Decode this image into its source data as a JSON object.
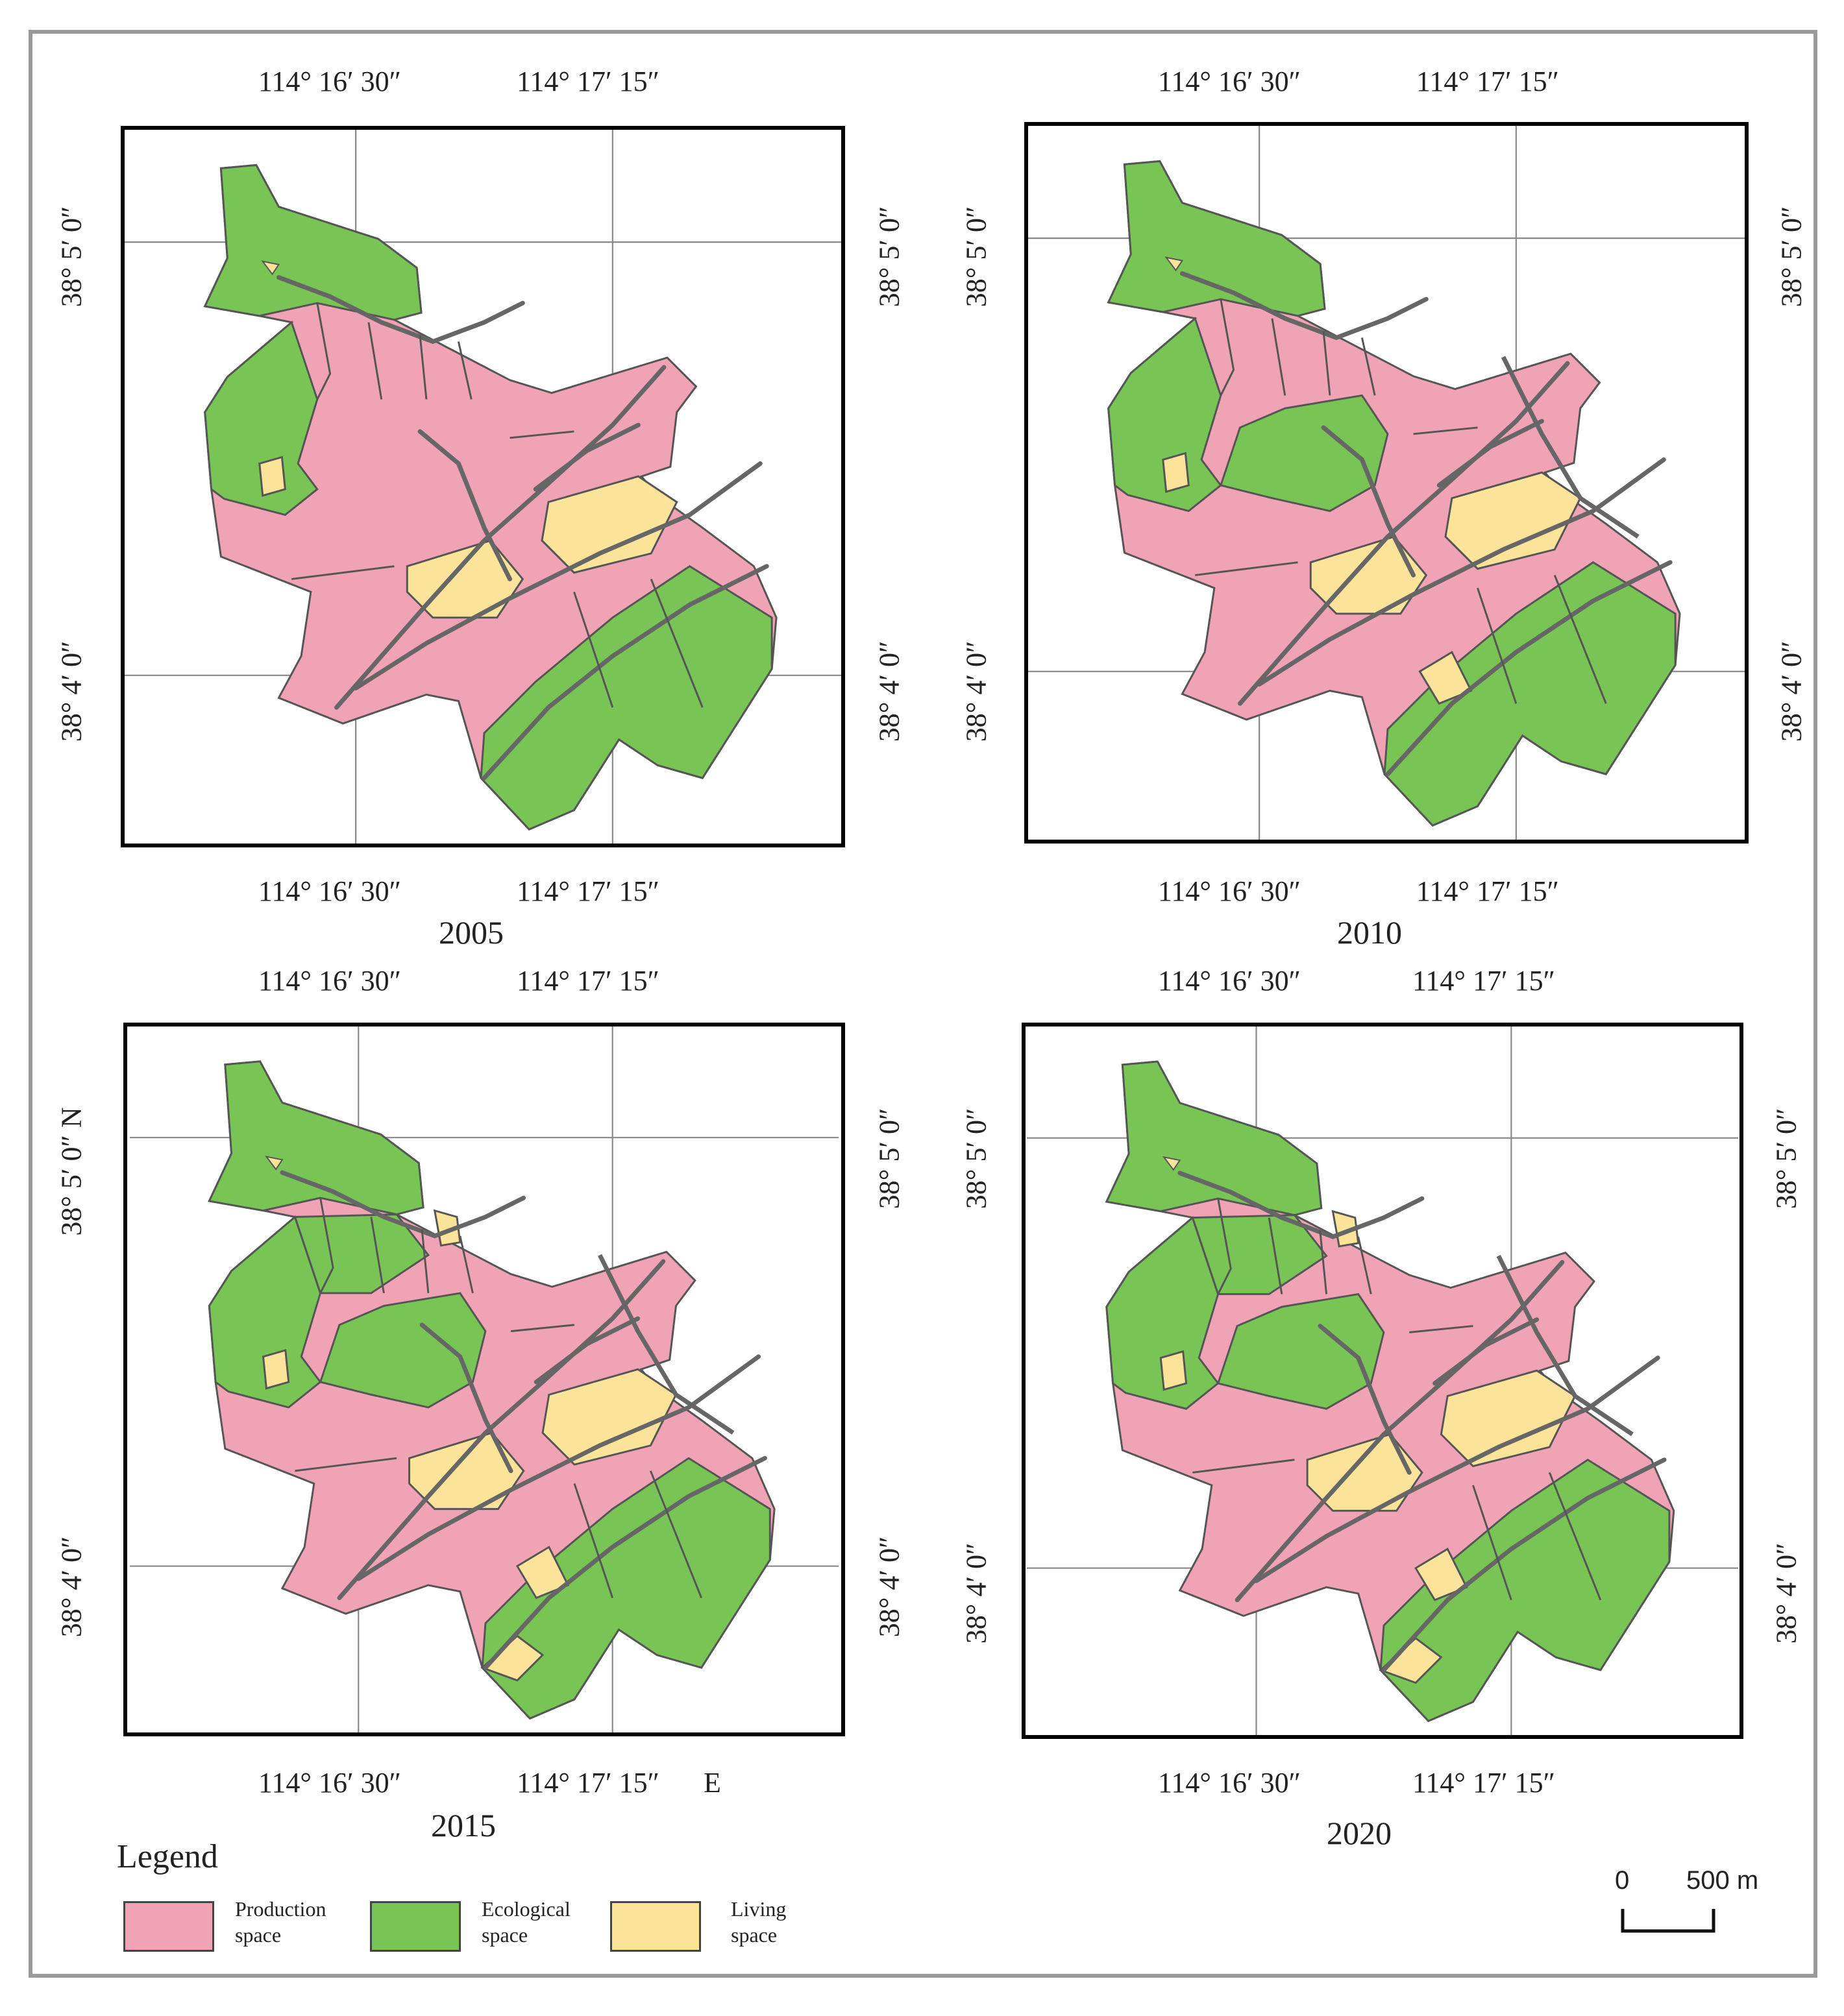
{
  "colors": {
    "production": "#f0a3b4",
    "ecological": "#78c455",
    "living": "#fbe49a",
    "road": "#666666",
    "outline": "#555555"
  },
  "panels": [
    {
      "year": "2005",
      "lon_left": "114°  16′ 30″",
      "lon_right": "114°  17′ 15″",
      "lat_top": "38°  5′ 0″",
      "lat_bottom": "38°  4′ 0″"
    },
    {
      "year": "2010",
      "lon_left": "114°  16′ 30″",
      "lon_right": "114°  17′ 15″",
      "lat_top": "38°  5′ 0″",
      "lat_bottom": "38°  4′ 0″"
    },
    {
      "year": "2015",
      "lon_left": "114°  16′ 30″",
      "lon_right": "114°  17′ 15″",
      "lat_top": "38°  5′ 0″",
      "lat_bottom": "38°  4′ 0″",
      "lat_top_left": "38°  5′ 0″ N",
      "east_label": "E"
    },
    {
      "year": "2020",
      "lon_left": "114°  16′ 30″",
      "lon_right": "114°  17′ 15″",
      "lat_top": "38°  5′ 0″",
      "lat_bottom": "38°  4′ 0″"
    }
  ],
  "legend": {
    "title": "Legend",
    "items": [
      {
        "line1": "Production",
        "line2": "space",
        "color": "#f0a3b4"
      },
      {
        "line1": "Ecological",
        "line2": "space",
        "color": "#78c455"
      },
      {
        "line1": "Living",
        "line2": "space",
        "color": "#fbe49a"
      }
    ]
  },
  "scale": {
    "zero": "0",
    "distance": "500 m"
  }
}
